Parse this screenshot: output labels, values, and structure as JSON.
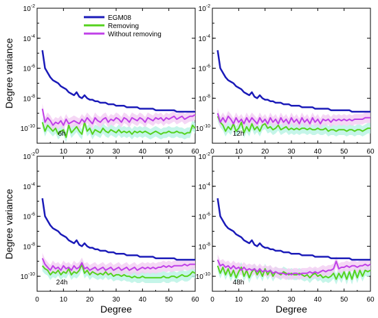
{
  "chart_data": {
    "type": "line",
    "ylabel": "Degree variance",
    "xlabel": "Degree",
    "xlim": [
      0,
      60
    ],
    "ylim_log10": [
      -11,
      -2
    ],
    "xticks": [
      "0",
      "10",
      "20",
      "30",
      "40",
      "50",
      "60"
    ],
    "yticks": [
      {
        "base": "10",
        "exp": "-2"
      },
      {
        "base": "10",
        "exp": "-4"
      },
      {
        "base": "10",
        "exp": "-6"
      },
      {
        "base": "10",
        "exp": "-8"
      },
      {
        "base": "10",
        "exp": "-10"
      }
    ],
    "legend": {
      "placement": "top-center of first panel",
      "entries": [
        {
          "label": "EGM08",
          "color": "#1a1ab8"
        },
        {
          "label": "Removing",
          "color": "#55d21e"
        },
        {
          "label": "Without removing",
          "color": "#c040e8"
        }
      ]
    },
    "series_colors": {
      "egm08": "#1a1ab8",
      "removing": "#55d21e",
      "without": "#c040e8",
      "removing_band": "#b6f3e4",
      "without_band": "#f2cdf2"
    },
    "panels": [
      {
        "label": "6h",
        "egm08_log": [
          -4.8,
          -6.0,
          -6.3,
          -6.6,
          -6.8,
          -6.9,
          -7.0,
          -7.2,
          -7.3,
          -7.4,
          -7.6,
          -7.7,
          -7.8,
          -7.6,
          -7.9,
          -8.0,
          -7.8,
          -8.0,
          -8.1,
          -8.1,
          -8.2,
          -8.2,
          -8.3,
          -8.3,
          -8.3,
          -8.4,
          -8.4,
          -8.4,
          -8.5,
          -8.5,
          -8.5,
          -8.5,
          -8.6,
          -8.6,
          -8.6,
          -8.6,
          -8.6,
          -8.7,
          -8.7,
          -8.7,
          -8.7,
          -8.7,
          -8.7,
          -8.8,
          -8.8,
          -8.8,
          -8.8,
          -8.8,
          -8.8,
          -8.8,
          -8.8,
          -8.9,
          -8.9,
          -8.9,
          -8.9,
          -8.9,
          -8.9,
          -8.9,
          -8.9
        ],
        "removing_log": [
          -9.6,
          -10.2,
          -9.8,
          -10.0,
          -10.2,
          -10.0,
          -10.4,
          -10.2,
          -10.1,
          -10.6,
          -9.8,
          -10.3,
          -10.1,
          -9.9,
          -10.2,
          -10.4,
          -9.6,
          -10.2,
          -10.0,
          -10.4,
          -10.1,
          -10.2,
          -10.3,
          -10.0,
          -10.2,
          -10.3,
          -10.1,
          -10.2,
          -10.3,
          -10.1,
          -10.3,
          -10.2,
          -10.3,
          -10.2,
          -10.4,
          -10.2,
          -10.3,
          -10.2,
          -10.3,
          -10.2,
          -10.3,
          -10.4,
          -10.3,
          -10.2,
          -10.3,
          -10.4,
          -10.3,
          -10.3,
          -10.2,
          -10.3,
          -10.3,
          -10.2,
          -10.3,
          -10.3,
          -10.4,
          -10.3,
          -10.3,
          -9.8,
          -10.0
        ],
        "without_log": [
          -8.7,
          -9.6,
          -9.3,
          -9.5,
          -9.8,
          -9.6,
          -9.7,
          -9.5,
          -9.8,
          -9.4,
          -9.7,
          -9.6,
          -9.5,
          -9.6,
          -9.7,
          -9.4,
          -9.6,
          -9.3,
          -9.5,
          -9.7,
          -9.3,
          -9.5,
          -9.6,
          -9.4,
          -9.3,
          -9.6,
          -9.4,
          -9.5,
          -9.3,
          -9.4,
          -9.6,
          -9.3,
          -9.4,
          -9.6,
          -9.3,
          -9.4,
          -9.5,
          -9.3,
          -9.4,
          -9.6,
          -9.3,
          -9.4,
          -9.5,
          -9.3,
          -9.4,
          -9.3,
          -9.5,
          -9.3,
          -9.4,
          -9.3,
          -9.2,
          -9.4,
          -9.3,
          -9.2,
          -9.4,
          -9.3,
          -9.2,
          -9.2,
          -9.1
        ]
      },
      {
        "label": "12h",
        "egm08_log": [
          -4.8,
          -6.0,
          -6.3,
          -6.6,
          -6.8,
          -6.9,
          -7.0,
          -7.2,
          -7.3,
          -7.4,
          -7.6,
          -7.7,
          -7.8,
          -7.6,
          -7.9,
          -8.0,
          -7.8,
          -8.0,
          -8.1,
          -8.1,
          -8.2,
          -8.2,
          -8.3,
          -8.3,
          -8.3,
          -8.4,
          -8.4,
          -8.4,
          -8.5,
          -8.5,
          -8.5,
          -8.5,
          -8.6,
          -8.6,
          -8.6,
          -8.6,
          -8.6,
          -8.7,
          -8.7,
          -8.7,
          -8.7,
          -8.7,
          -8.7,
          -8.8,
          -8.8,
          -8.8,
          -8.8,
          -8.8,
          -8.8,
          -8.8,
          -8.8,
          -8.9,
          -8.9,
          -8.9,
          -8.9,
          -8.9,
          -8.9,
          -8.9,
          -8.9
        ],
        "removing_log": [
          -9.2,
          -9.6,
          -9.8,
          -10.2,
          -9.9,
          -10.1,
          -9.7,
          -10.2,
          -10.0,
          -9.6,
          -10.3,
          -9.9,
          -10.2,
          -9.7,
          -10.1,
          -9.9,
          -10.2,
          -9.8,
          -9.7,
          -10.0,
          -9.9,
          -10.1,
          -10.0,
          -9.8,
          -10.1,
          -10.0,
          -9.9,
          -10.1,
          -10.0,
          -10.1,
          -10.0,
          -10.1,
          -10.0,
          -10.0,
          -10.1,
          -10.0,
          -10.1,
          -10.1,
          -10.0,
          -10.1,
          -10.1,
          -10.0,
          -10.2,
          -10.1,
          -10.1,
          -10.2,
          -10.1,
          -10.1,
          -10.1,
          -10.2,
          -10.1,
          -10.1,
          -10.2,
          -10.1,
          -10.1,
          -10.2,
          -10.1,
          -10.0,
          -10.0
        ],
        "without_log": [
          -9.0,
          -9.6,
          -9.3,
          -9.6,
          -9.2,
          -9.4,
          -9.7,
          -9.3,
          -9.6,
          -9.4,
          -9.7,
          -9.3,
          -9.6,
          -9.3,
          -9.5,
          -9.7,
          -9.3,
          -9.6,
          -9.4,
          -9.7,
          -9.3,
          -9.6,
          -9.4,
          -9.7,
          -9.3,
          -9.6,
          -9.4,
          -9.7,
          -9.3,
          -9.6,
          -9.4,
          -9.7,
          -9.3,
          -9.6,
          -9.4,
          -9.7,
          -9.3,
          -9.6,
          -9.4,
          -9.7,
          -9.4,
          -9.5,
          -9.4,
          -9.6,
          -9.4,
          -9.5,
          -9.4,
          -9.5,
          -9.4,
          -9.5,
          -9.4,
          -9.5,
          -9.4,
          -9.4,
          -9.4,
          -9.4,
          -9.3,
          -9.3,
          -9.3
        ]
      },
      {
        "label": "24h",
        "egm08_log": [
          -4.8,
          -6.0,
          -6.3,
          -6.6,
          -6.8,
          -6.9,
          -7.0,
          -7.2,
          -7.3,
          -7.4,
          -7.6,
          -7.7,
          -7.8,
          -7.6,
          -7.9,
          -8.0,
          -7.8,
          -8.0,
          -8.1,
          -8.1,
          -8.2,
          -8.2,
          -8.3,
          -8.3,
          -8.3,
          -8.4,
          -8.4,
          -8.4,
          -8.5,
          -8.5,
          -8.5,
          -8.5,
          -8.6,
          -8.6,
          -8.6,
          -8.6,
          -8.6,
          -8.7,
          -8.7,
          -8.7,
          -8.7,
          -8.7,
          -8.7,
          -8.8,
          -8.8,
          -8.8,
          -8.8,
          -8.8,
          -8.8,
          -8.8,
          -8.8,
          -8.9,
          -8.9,
          -8.9,
          -8.9,
          -8.9,
          -8.9,
          -8.9,
          -8.9
        ],
        "removing_log": [
          -9.3,
          -9.5,
          -9.6,
          -9.9,
          -9.7,
          -9.8,
          -9.6,
          -9.9,
          -9.7,
          -9.8,
          -9.5,
          -9.9,
          -9.7,
          -9.8,
          -9.6,
          -9.2,
          -9.8,
          -9.6,
          -9.9,
          -9.7,
          -9.8,
          -9.9,
          -9.8,
          -9.9,
          -9.7,
          -9.9,
          -9.8,
          -10.0,
          -9.9,
          -9.9,
          -10.0,
          -9.9,
          -10.0,
          -10.0,
          -10.1,
          -10.0,
          -10.1,
          -10.1,
          -10.0,
          -10.1,
          -10.1,
          -10.1,
          -10.1,
          -10.1,
          -10.1,
          -10.1,
          -10.0,
          -10.1,
          -10.1,
          -10.0,
          -10.0,
          -10.1,
          -10.0,
          -9.9,
          -10.0,
          -10.0,
          -9.9,
          -9.7,
          -9.8
        ],
        "without_log": [
          -8.8,
          -9.2,
          -9.4,
          -9.6,
          -9.3,
          -9.5,
          -9.4,
          -9.6,
          -9.3,
          -9.5,
          -9.4,
          -9.6,
          -9.3,
          -9.5,
          -9.4,
          -9.1,
          -9.5,
          -9.4,
          -9.6,
          -9.5,
          -9.4,
          -9.6,
          -9.5,
          -9.4,
          -9.6,
          -9.5,
          -9.4,
          -9.6,
          -9.5,
          -9.4,
          -9.6,
          -9.5,
          -9.4,
          -9.6,
          -9.5,
          -9.4,
          -9.6,
          -9.5,
          -9.4,
          -9.5,
          -9.4,
          -9.5,
          -9.4,
          -9.5,
          -9.4,
          -9.4,
          -9.3,
          -9.4,
          -9.3,
          -9.4,
          -9.3,
          -9.3,
          -9.3,
          -9.3,
          -9.2,
          -9.3,
          -9.2,
          -9.2,
          -9.2
        ]
      },
      {
        "label": "48h",
        "egm08_log": [
          -4.8,
          -6.0,
          -6.3,
          -6.6,
          -6.8,
          -6.9,
          -7.0,
          -7.2,
          -7.3,
          -7.4,
          -7.6,
          -7.7,
          -7.8,
          -7.6,
          -7.9,
          -8.0,
          -7.8,
          -8.0,
          -8.1,
          -8.1,
          -8.2,
          -8.2,
          -8.3,
          -8.3,
          -8.3,
          -8.4,
          -8.4,
          -8.4,
          -8.5,
          -8.5,
          -8.5,
          -8.5,
          -8.6,
          -8.6,
          -8.6,
          -8.6,
          -8.6,
          -8.7,
          -8.7,
          -8.7,
          -8.7,
          -8.7,
          -8.7,
          -8.8,
          -8.8,
          -8.8,
          -8.8,
          -8.8,
          -8.8,
          -8.8,
          -8.8,
          -8.9,
          -8.9,
          -8.9,
          -8.9,
          -8.9,
          -8.9,
          -8.9,
          -8.9
        ],
        "removing_log": [
          -9.3,
          -9.8,
          -9.4,
          -9.9,
          -9.5,
          -10.0,
          -9.6,
          -10.1,
          -9.7,
          -9.4,
          -10.0,
          -9.6,
          -10.1,
          -9.7,
          -9.5,
          -9.9,
          -9.6,
          -10.0,
          -9.5,
          -9.9,
          -9.6,
          -10.0,
          -9.7,
          -9.8,
          -9.9,
          -9.7,
          -9.8,
          -9.9,
          -9.8,
          -9.9,
          -9.9,
          -9.8,
          -9.9,
          -10.0,
          -9.9,
          -10.1,
          -9.9,
          -9.8,
          -10.0,
          -9.9,
          -10.1,
          -10.0,
          -10.1,
          -10.0,
          -9.8,
          -10.2,
          -9.8,
          -10.1,
          -9.7,
          -10.2,
          -9.7,
          -10.2,
          -9.6,
          -10.1,
          -9.6,
          -10.0,
          -9.6,
          -9.7,
          -9.6
        ],
        "without_log": [
          -8.9,
          -9.3,
          -9.2,
          -9.4,
          -9.3,
          -9.5,
          -9.3,
          -9.5,
          -9.4,
          -9.6,
          -9.4,
          -9.6,
          -9.5,
          -9.6,
          -9.5,
          -9.7,
          -9.5,
          -9.7,
          -9.6,
          -9.7,
          -9.6,
          -9.8,
          -9.7,
          -9.8,
          -9.8,
          -9.8,
          -9.9,
          -9.8,
          -9.9,
          -9.8,
          -9.8,
          -9.9,
          -9.8,
          -9.8,
          -9.8,
          -9.7,
          -9.8,
          -9.7,
          -9.8,
          -9.7,
          -9.6,
          -9.7,
          -9.6,
          -9.6,
          -9.5,
          -9.0,
          -9.5,
          -9.4,
          -9.4,
          -9.3,
          -9.4,
          -9.3,
          -9.3,
          -9.4,
          -9.3,
          -9.3,
          -9.2,
          -9.3,
          -9.2
        ]
      }
    ]
  }
}
